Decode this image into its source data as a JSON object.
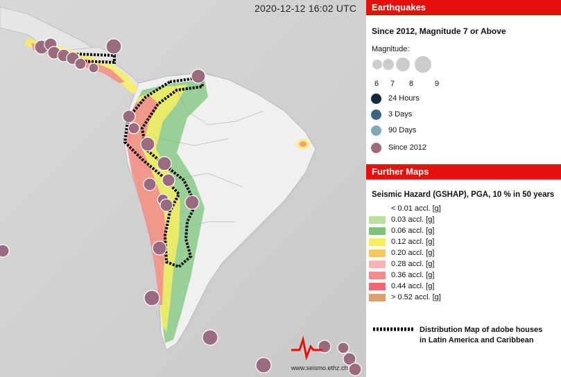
{
  "map": {
    "timestamp": "2020-12-12 16:02 UTC",
    "brand_url": "www.seismo.ethz.ch",
    "quakes_color": "#9a6a7e",
    "hazard_colors": [
      "#b9dfa0",
      "#7cc57a",
      "#f6ee60",
      "#f5c960",
      "#f7b4b4",
      "#f28a90",
      "#f06870",
      "#d9a070"
    ],
    "outline_color": "#000000"
  },
  "panel": {
    "earthquakes_header": "Earthquakes",
    "since_title": "Since 2012, Magnitude 7 or Above",
    "magnitude_label": "Magnitude:",
    "magnitudes": [
      "6",
      "7",
      "8",
      "9"
    ],
    "time_legend": [
      {
        "label": "24 Hours",
        "color": "#10293b"
      },
      {
        "label": "3 Days",
        "color": "#3d6480"
      },
      {
        "label": "90 Days",
        "color": "#7fa8b4"
      },
      {
        "label": "Since 2012",
        "color": "#9a6a7e"
      }
    ],
    "further_header": "Further Maps",
    "hazard_title": "Seismic Hazard (GSHAP), PGA, 10 % in 50 years",
    "hazard_legend": [
      {
        "label": "< 0.01 accl. [g]",
        "color": "#ffffff"
      },
      {
        "label": "0.03 accl. [g]",
        "color": "#b9dfa0"
      },
      {
        "label": "0.06 accl. [g]",
        "color": "#7cc57a"
      },
      {
        "label": "0.12 accl. [g]",
        "color": "#f6ee60"
      },
      {
        "label": "0.20 accl. [g]",
        "color": "#f5c960"
      },
      {
        "label": "0.28 accl. [g]",
        "color": "#f7b4b4"
      },
      {
        "label": "0.36 accl. [g]",
        "color": "#f28a90"
      },
      {
        "label": "0.44 accl. [g]",
        "color": "#f06870"
      },
      {
        "label": "> 0.52 accl. [g]",
        "color": "#d9a070"
      }
    ],
    "distribution_line1": "Distribution Map of adobe houses",
    "distribution_line2": "in Latin America and Caribbean"
  }
}
